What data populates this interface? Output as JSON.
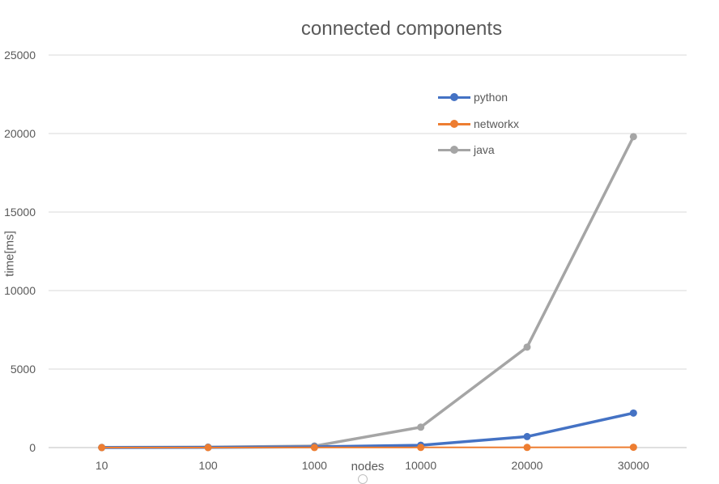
{
  "chart_data": {
    "type": "line",
    "title": "connected components",
    "xlabel": "nodes",
    "ylabel": "time[ms]",
    "categories": [
      "10",
      "100",
      "1000",
      "10000",
      "20000",
      "30000"
    ],
    "yticks": [
      "0",
      "5000",
      "10000",
      "15000",
      "20000",
      "25000"
    ],
    "ylim": [
      0,
      25000
    ],
    "grid": true,
    "legend_position": "top-right",
    "series": [
      {
        "name": "python",
        "color": "#4472c4",
        "values": [
          0,
          10,
          50,
          150,
          700,
          2200
        ]
      },
      {
        "name": "networkx",
        "color": "#ed7d31",
        "values": [
          0,
          0,
          5,
          10,
          10,
          20
        ]
      },
      {
        "name": "java",
        "color": "#a5a5a5",
        "values": [
          10,
          30,
          100,
          1300,
          6400,
          19800
        ]
      }
    ]
  }
}
